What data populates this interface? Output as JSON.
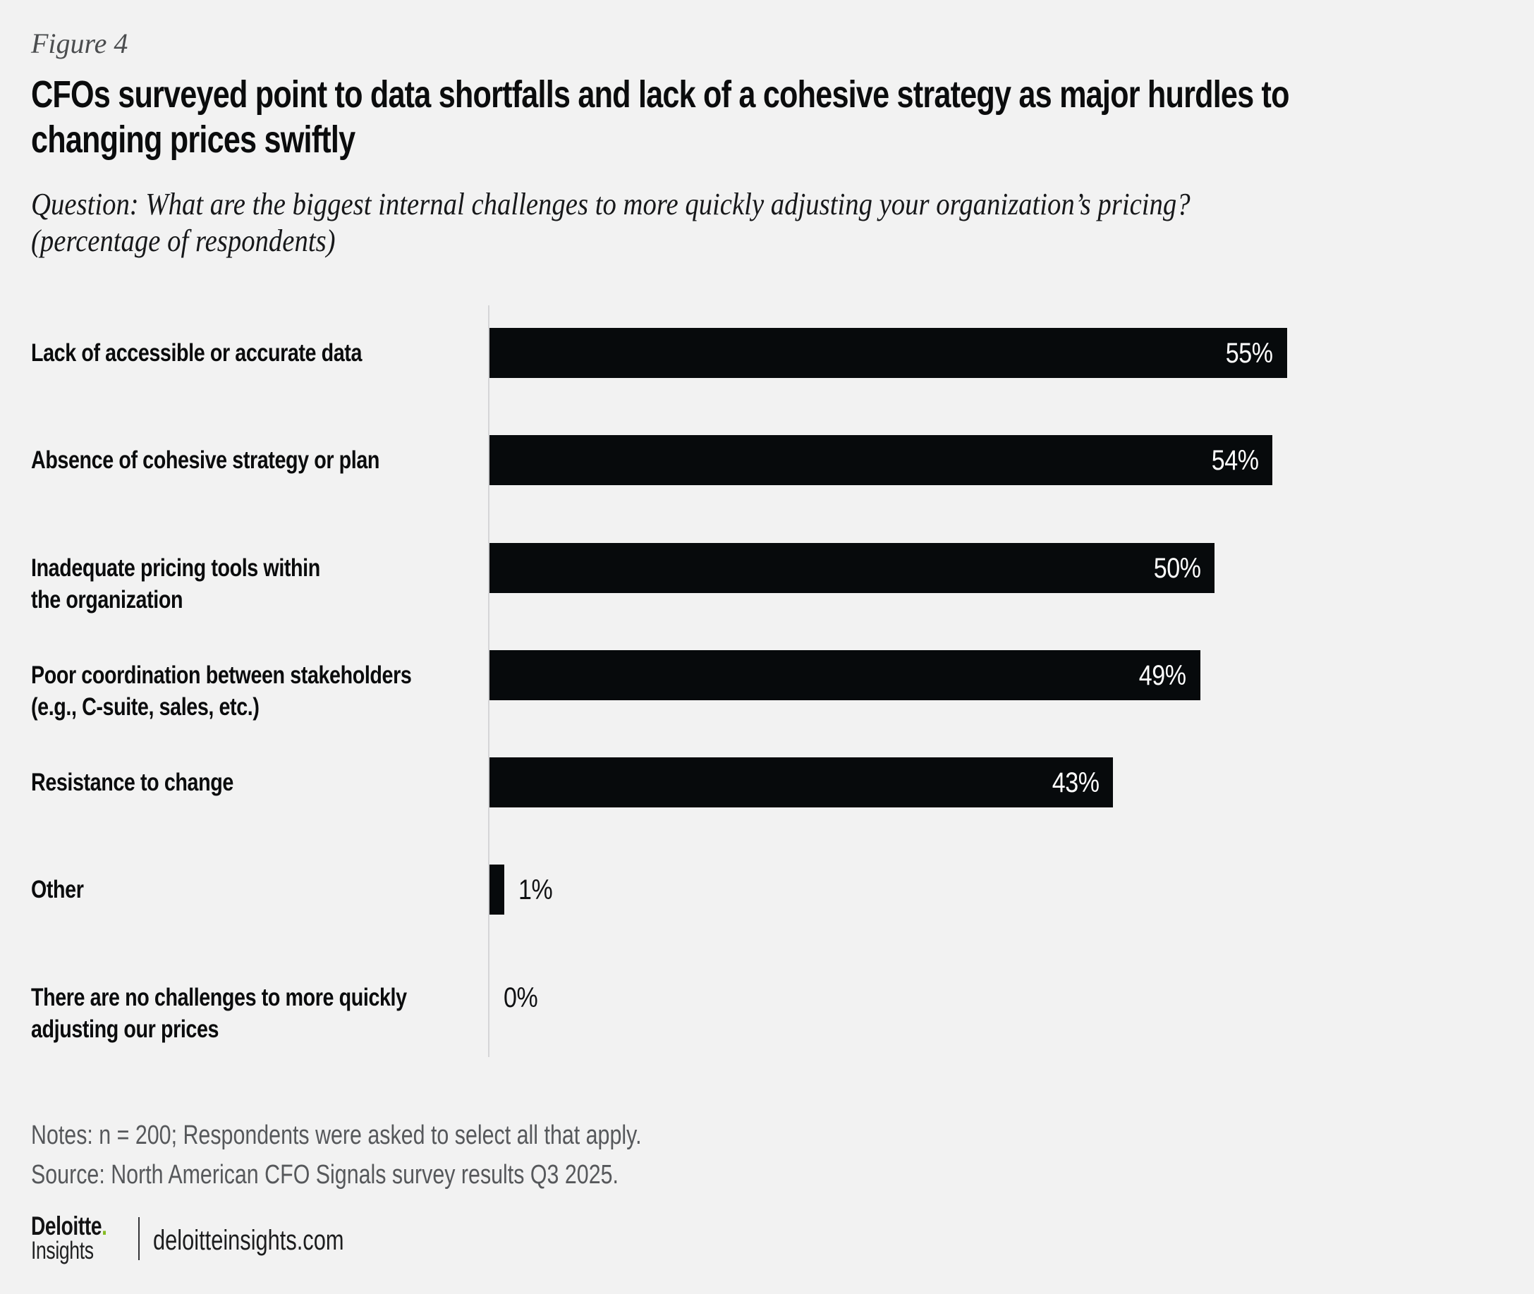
{
  "figure_label": "Figure 4",
  "title": {
    "line1": "CFOs surveyed point to data shortfalls and lack of a cohesive strategy as major hurdles to",
    "line2": "changing prices swiftly"
  },
  "question": {
    "line1": "Question: What are the biggest internal challenges to more quickly adjusting your organization’s pricing?",
    "line2": "(percentage of respondents)"
  },
  "chart_data": {
    "type": "bar",
    "orientation": "horizontal",
    "title": "CFOs surveyed point to data shortfalls and lack of a cohesive strategy as major hurdles to changing prices swiftly",
    "xlabel": "",
    "ylabel": "",
    "value_unit": "%",
    "xlim": [
      0,
      55
    ],
    "grid": false,
    "legend": "none",
    "bar_color": "#070a0c",
    "value_label_color_inside": "#ffffff",
    "value_label_color_outside": "#101113",
    "categories": [
      "Lack of accessible or accurate data",
      "Absence of cohesive strategy or plan",
      "Inadequate pricing tools within the organization",
      "Poor coordination between stakeholders (e.g., C-suite, sales, etc.)",
      "Resistance to change",
      "Other",
      "There are no challenges to more quickly adjusting our prices"
    ],
    "values": [
      55,
      54,
      50,
      49,
      43,
      1,
      0
    ],
    "value_labels": [
      "55%",
      "54%",
      "50%",
      "49%",
      "43%",
      "1%",
      "0%"
    ],
    "rows": [
      {
        "label_lines": [
          "Lack of accessible or accurate data"
        ],
        "value": 55,
        "value_label": "55%",
        "value_label_placement": "inside"
      },
      {
        "label_lines": [
          "Absence of cohesive strategy or plan"
        ],
        "value": 54,
        "value_label": "54%",
        "value_label_placement": "inside"
      },
      {
        "label_lines": [
          "Inadequate pricing tools within",
          "the organization"
        ],
        "value": 50,
        "value_label": "50%",
        "value_label_placement": "inside"
      },
      {
        "label_lines": [
          "Poor coordination between stakeholders",
          "(e.g., C-suite, sales, etc.)"
        ],
        "value": 49,
        "value_label": "49%",
        "value_label_placement": "inside"
      },
      {
        "label_lines": [
          "Resistance to change"
        ],
        "value": 43,
        "value_label": "43%",
        "value_label_placement": "inside"
      },
      {
        "label_lines": [
          "Other"
        ],
        "value": 1,
        "value_label": "1%",
        "value_label_placement": "outside"
      },
      {
        "label_lines": [
          "There are no challenges to more quickly",
          "adjusting our prices"
        ],
        "value": 0,
        "value_label": "0%",
        "value_label_placement": "outside"
      }
    ]
  },
  "notes": {
    "line1": "Notes: n = 200; Respondents were asked to select all that apply.",
    "line2": "Source: North American CFO Signals survey results Q3 2025."
  },
  "footer": {
    "brand_name": "Deloitte",
    "brand_dot": ".",
    "brand_sub": "Insights",
    "site": "deloitteinsights.com"
  },
  "colors": {
    "background": "#f2f2f2",
    "bar": "#070a0c",
    "axis_line": "#d5d5d7",
    "muted_text": "#56585b",
    "figure_label_text": "#4b4d4f",
    "accent_green": "#86bc24"
  }
}
